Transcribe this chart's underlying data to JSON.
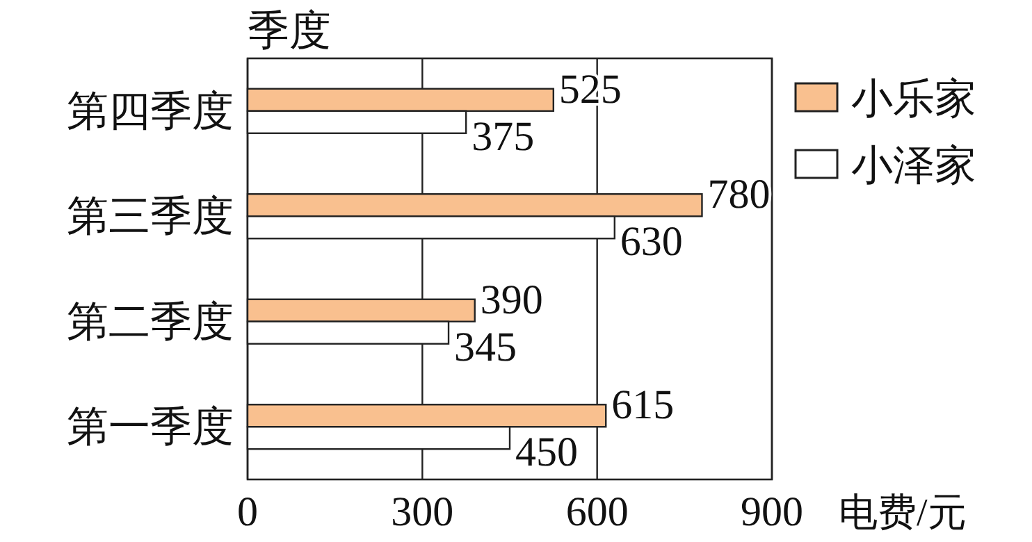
{
  "chart_data": {
    "type": "bar",
    "orientation": "horizontal",
    "ylabel": "季度",
    "xlabel": "电费/元",
    "categories": [
      "第四季度",
      "第三季度",
      "第二季度",
      "第一季度"
    ],
    "series": [
      {
        "name": "小乐家",
        "color": "#f9c08f",
        "values": [
          525,
          780,
          390,
          615
        ]
      },
      {
        "name": "小泽家",
        "color": "#ffffff",
        "values": [
          375,
          630,
          345,
          450
        ]
      }
    ],
    "xlim": [
      0,
      900
    ],
    "xticks": [
      0,
      300,
      600,
      900
    ],
    "grid": "x",
    "legend": "top right",
    "data_labels": true
  }
}
